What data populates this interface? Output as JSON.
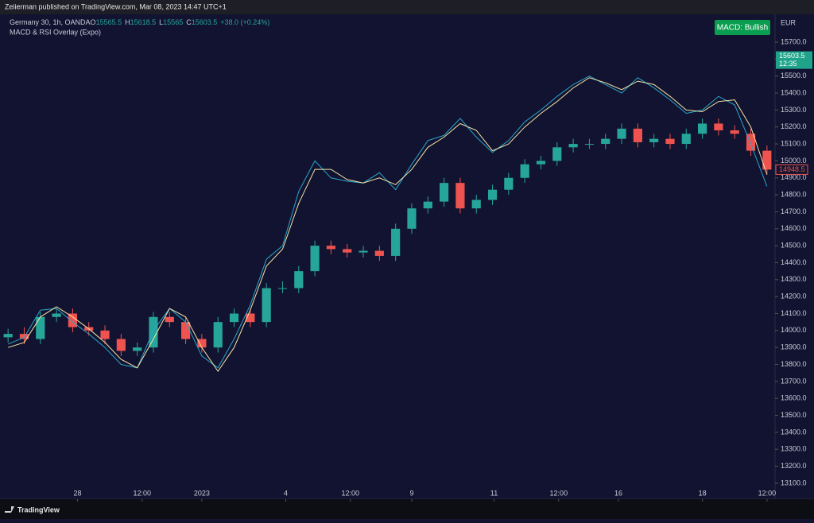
{
  "header": "Zeiierman published on TradingView.com, Mar 08, 2023 14:47 UTC+1",
  "footer": "TradingView",
  "chart_data": {
    "type": "candlestick",
    "symbol": "Germany 30, 1h, OANDA",
    "ohlc": [
      {
        "label": "O",
        "value": 15565.5
      },
      {
        "label": "H",
        "value": 15618.5
      },
      {
        "label": "L",
        "value": 15565.0
      },
      {
        "label": "C",
        "value": 15603.5
      }
    ],
    "change": "+38.0 (+0.24%)",
    "indicator": "MACD & RSI Overlay (Expo)",
    "badge": "MACD: Bullish",
    "currency": "EUR",
    "last_price": {
      "value": 15603.5,
      "label": "15603.5"
    },
    "countdown": "12:35",
    "marker_price": {
      "value": 14948.5,
      "label": "14948.5"
    },
    "x": [
      0,
      1,
      2,
      3,
      4,
      5,
      6,
      7,
      8,
      9,
      10,
      11,
      12,
      13,
      14,
      15,
      16,
      17,
      18,
      19,
      20,
      21,
      22,
      23,
      24,
      25,
      26,
      27,
      28,
      29,
      30,
      31,
      32,
      33,
      34,
      35,
      36,
      37,
      38,
      39,
      40,
      41,
      42,
      43,
      44,
      45,
      46,
      47
    ],
    "xlim": [
      -0.5,
      47.5
    ],
    "xticks": [
      {
        "value": 4.3,
        "label": "28"
      },
      {
        "value": 8.3,
        "label": "12:00"
      },
      {
        "value": 12.0,
        "label": "2023"
      },
      {
        "value": 17.2,
        "label": "4"
      },
      {
        "value": 21.2,
        "label": "12:00"
      },
      {
        "value": 25.0,
        "label": "9"
      },
      {
        "value": 30.1,
        "label": "11"
      },
      {
        "value": 34.1,
        "label": "12:00"
      },
      {
        "value": 37.8,
        "label": "16"
      },
      {
        "value": 43.0,
        "label": "18"
      },
      {
        "value": 47.0,
        "label": "12:00"
      }
    ],
    "open": [
      13960,
      13980,
      13950,
      14080,
      14100,
      14020,
      14000,
      13950,
      13880,
      13900,
      14080,
      14050,
      13950,
      13900,
      14050,
      14100,
      14050,
      14250,
      14250,
      14350,
      14500,
      14480,
      14460,
      14470,
      14440,
      14600,
      14720,
      14760,
      14870,
      14720,
      14770,
      14830,
      14900,
      14980,
      15000,
      15080,
      15100,
      15100,
      15130,
      15190,
      15110,
      15130,
      15100,
      15160,
      15220,
      15180,
      15160,
      15060
    ],
    "high": [
      14010,
      14020,
      14110,
      14130,
      14130,
      14050,
      14030,
      13980,
      13930,
      14110,
      14110,
      14080,
      13980,
      14080,
      14130,
      14130,
      14280,
      14290,
      14380,
      14530,
      14530,
      14510,
      14500,
      14500,
      14630,
      14750,
      14790,
      14900,
      14900,
      14800,
      14860,
      14930,
      15010,
      15030,
      15110,
      15130,
      15130,
      15160,
      15220,
      15220,
      15160,
      15160,
      15190,
      15250,
      15250,
      15210,
      15190,
      15090
    ],
    "low": [
      13930,
      13920,
      13920,
      14050,
      13990,
      13970,
      13920,
      13850,
      13850,
      13870,
      14020,
      13920,
      13870,
      13870,
      14020,
      14020,
      14020,
      14220,
      14220,
      14320,
      14450,
      14430,
      14430,
      14410,
      14410,
      14570,
      14690,
      14730,
      14690,
      14690,
      14740,
      14800,
      14870,
      14950,
      14970,
      15050,
      15070,
      15070,
      15100,
      15080,
      15080,
      15070,
      15070,
      15130,
      15150,
      15130,
      15030,
      14918
    ],
    "close": [
      13980,
      13950,
      14080,
      14100,
      14020,
      14000,
      13950,
      13880,
      13900,
      14080,
      14050,
      13950,
      13900,
      14050,
      14100,
      14050,
      14250,
      14250,
      14350,
      14500,
      14480,
      14460,
      14470,
      14440,
      14600,
      14720,
      14760,
      14870,
      14720,
      14770,
      14830,
      14900,
      14980,
      15000,
      15080,
      15100,
      15100,
      15130,
      15190,
      15110,
      15130,
      15100,
      15160,
      15220,
      15180,
      15160,
      15060,
      14948.5
    ],
    "up_color": "#26a69a",
    "down_color": "#ef5350",
    "series": [
      {
        "color": "#29a6cc",
        "values": [
          13920,
          13960,
          14120,
          14130,
          14050,
          13980,
          13900,
          13800,
          13780,
          14000,
          14130,
          14050,
          13850,
          13780,
          13950,
          14150,
          14420,
          14500,
          14820,
          15000,
          14900,
          14880,
          14870,
          14930,
          14830,
          14980,
          15120,
          15150,
          15250,
          15140,
          15050,
          15120,
          15230,
          15300,
          15380,
          15450,
          15500,
          15450,
          15400,
          15490,
          15430,
          15360,
          15280,
          15300,
          15380,
          15330,
          15100,
          14850
        ]
      },
      {
        "color": "#f3e3a6",
        "values": [
          13900,
          13930,
          14080,
          14140,
          14080,
          14010,
          13930,
          13830,
          13780,
          13950,
          14130,
          14080,
          13900,
          13760,
          13900,
          14120,
          14380,
          14480,
          14750,
          14950,
          14950,
          14890,
          14870,
          14900,
          14860,
          14950,
          15080,
          15140,
          15220,
          15180,
          15060,
          15100,
          15200,
          15280,
          15350,
          15430,
          15490,
          15460,
          15420,
          15470,
          15450,
          15380,
          15300,
          15290,
          15350,
          15360,
          15200,
          14920
        ]
      }
    ],
    "ylim": [
      13006,
      15864
    ],
    "yticks": [
      {
        "value": 13100,
        "label": "13100.0"
      },
      {
        "value": 13200,
        "label": "13200.0"
      },
      {
        "value": 13300,
        "label": "13300.0"
      },
      {
        "value": 13400,
        "label": "13400.0"
      },
      {
        "value": 13500,
        "label": "13500.0"
      },
      {
        "value": 13600,
        "label": "13600.0"
      },
      {
        "value": 13700,
        "label": "13700.0"
      },
      {
        "value": 13800,
        "label": "13800.0"
      },
      {
        "value": 13900,
        "label": "13900.0"
      },
      {
        "value": 14000,
        "label": "14000.0"
      },
      {
        "value": 14100,
        "label": "14100.0"
      },
      {
        "value": 14200,
        "label": "14200.0"
      },
      {
        "value": 14300,
        "label": "14300.0"
      },
      {
        "value": 14400,
        "label": "14400.0"
      },
      {
        "value": 14500,
        "label": "14500.0"
      },
      {
        "value": 14600,
        "label": "14600.0"
      },
      {
        "value": 14700,
        "label": "14700.0"
      },
      {
        "value": 14800,
        "label": "14800.0"
      },
      {
        "value": 14900,
        "label": "14900.0"
      },
      {
        "value": 15000,
        "label": "15000.0"
      },
      {
        "value": 15100,
        "label": "15100.0"
      },
      {
        "value": 15200,
        "label": "15200.0"
      },
      {
        "value": 15300,
        "label": "15300.0"
      },
      {
        "value": 15400,
        "label": "15400.0"
      },
      {
        "value": 15500,
        "label": "15500.0"
      },
      {
        "value": 15600,
        "label": "15600.0"
      },
      {
        "value": 15700,
        "label": "15700.0"
      }
    ]
  }
}
